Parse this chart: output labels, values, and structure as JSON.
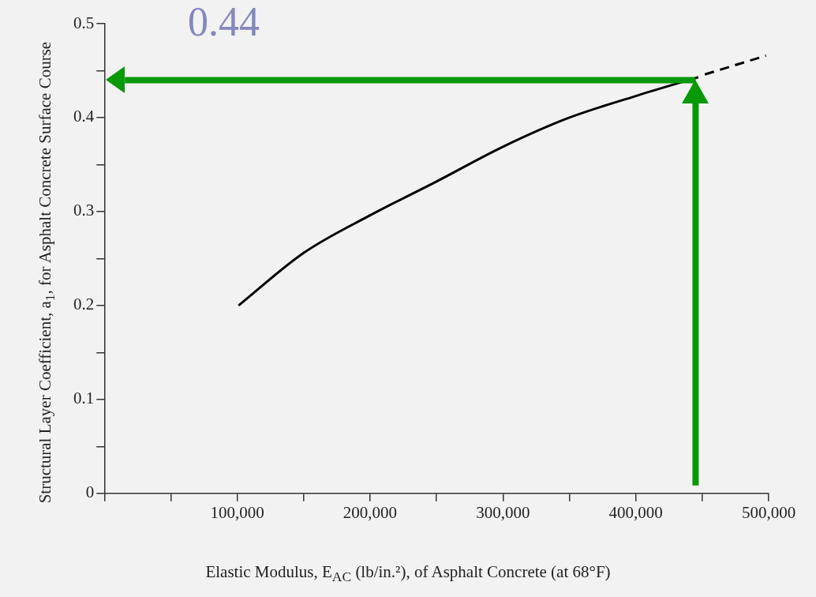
{
  "chart_data": {
    "type": "line",
    "xlabel": "Elastic Modulus, E$_{AC}$ (lb/in.²), of Asphalt Concrete (at 68°F)",
    "ylabel": "Structural Layer Coefficient, a$_{1}$, for Asphalt Concrete Surface Course",
    "annotations": [
      "0.44"
    ],
    "series": [
      {
        "color": "#000000",
        "line_style": "solid",
        "x": [
          101000,
          150000,
          200000,
          250000,
          300000,
          350000,
          400000,
          447000
        ],
        "values": [
          0.2,
          0.256,
          0.296,
          0.332,
          0.369,
          0.4,
          0.423,
          0.443
        ]
      },
      {
        "color": "#000000",
        "line_style": "dashed",
        "x": [
          452000,
          498000
        ],
        "values": [
          0.446,
          0.466
        ]
      }
    ],
    "xlim": [
      0,
      500000
    ],
    "xticks": [
      {
        "value": 0,
        "label": null
      },
      {
        "value": 50000,
        "label": null
      },
      {
        "value": 100000,
        "label": "100,000"
      },
      {
        "value": 150000,
        "label": null
      },
      {
        "value": 200000,
        "label": "200,000"
      },
      {
        "value": 250000,
        "label": null
      },
      {
        "value": 300000,
        "label": "300,000"
      },
      {
        "value": 350000,
        "label": null
      },
      {
        "value": 400000,
        "label": "400,000"
      },
      {
        "value": 450000,
        "label": null
      },
      {
        "value": 500000,
        "label": "500,000"
      }
    ],
    "ylim": [
      0,
      0.5
    ],
    "yticks": [
      0,
      {
        "value": 0.05,
        "label": null
      },
      0.1,
      {
        "value": 0.15,
        "label": null
      },
      0.2,
      {
        "value": 0.25,
        "label": null
      },
      0.3,
      {
        "value": 0.35,
        "label": null
      },
      0.4,
      {
        "value": 0.45,
        "label": null
      },
      0.5
    ],
    "ref_lines": [
      {
        "axis": "y",
        "value": 0.44,
        "color": "#079907"
      },
      {
        "axis": "x",
        "value": 445000,
        "color": "#079907"
      }
    ],
    "marker": "none",
    "grid": false,
    "legend": false
  }
}
